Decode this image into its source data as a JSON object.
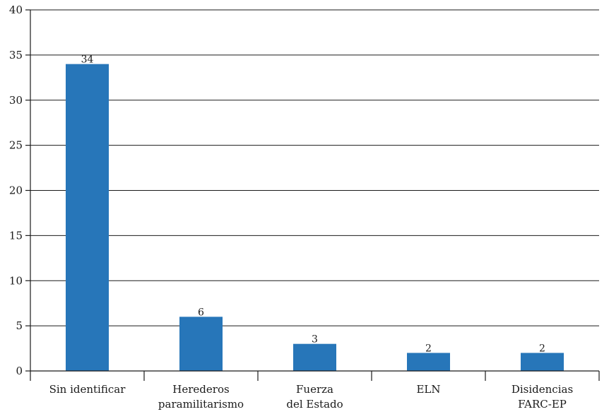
{
  "chart_data": {
    "type": "bar",
    "categories": [
      [
        "Sin identificar"
      ],
      [
        "Herederos",
        "paramilitarismo"
      ],
      [
        "Fuerza",
        "del Estado"
      ],
      [
        "ELN"
      ],
      [
        "Disidencias",
        "FARC-EP"
      ]
    ],
    "values": [
      34,
      6,
      3,
      2,
      2
    ],
    "data_labels": [
      "34",
      "6",
      "3",
      "2",
      "2"
    ],
    "title": "",
    "xlabel": "",
    "ylabel": "",
    "ylim": [
      0,
      40
    ],
    "yticks": [
      0,
      5,
      10,
      15,
      20,
      25,
      30,
      35,
      40
    ],
    "ytick_labels": [
      "0",
      "5",
      "10",
      "15",
      "20",
      "25",
      "30",
      "35",
      "40"
    ],
    "grid": "horizontal",
    "legend": "none",
    "bar_color": "#2776b9",
    "axis_color": "#1a1a1a"
  }
}
